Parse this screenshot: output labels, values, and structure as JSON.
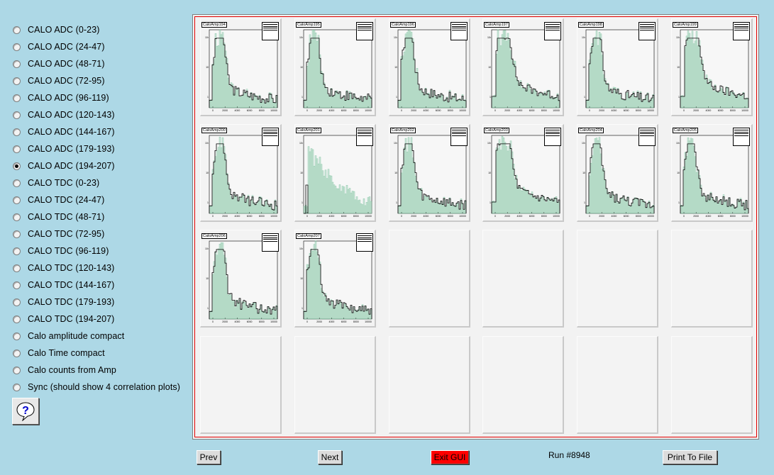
{
  "sidebar": {
    "options": [
      {
        "label": "CALO ADC (0-23)",
        "checked": false
      },
      {
        "label": "CALO ADC (24-47)",
        "checked": false
      },
      {
        "label": "CALO ADC (48-71)",
        "checked": false
      },
      {
        "label": "CALO ADC (72-95)",
        "checked": false
      },
      {
        "label": "CALO ADC (96-119)",
        "checked": false
      },
      {
        "label": "CALO ADC (120-143)",
        "checked": false
      },
      {
        "label": "CALO ADC (144-167)",
        "checked": false
      },
      {
        "label": "CALO ADC (179-193)",
        "checked": false
      },
      {
        "label": "CALO ADC (194-207)",
        "checked": true
      },
      {
        "label": "CALO TDC (0-23)",
        "checked": false
      },
      {
        "label": "CALO TDC (24-47)",
        "checked": false
      },
      {
        "label": "CALO TDC (48-71)",
        "checked": false
      },
      {
        "label": "CALO TDC (72-95)",
        "checked": false
      },
      {
        "label": "CALO TDC (96-119)",
        "checked": false
      },
      {
        "label": "CALO TDC (120-143)",
        "checked": false
      },
      {
        "label": "CALO TDC (144-167)",
        "checked": false
      },
      {
        "label": "CALO TDC (179-193)",
        "checked": false
      },
      {
        "label": "CALO TDC (194-207)",
        "checked": false
      },
      {
        "label": "Calo amplitude compact",
        "checked": false
      },
      {
        "label": "Calo Time compact",
        "checked": false
      },
      {
        "label": "Calo counts from Amp",
        "checked": false
      },
      {
        "label": "Sync (should show 4 correlation plots)",
        "checked": false
      }
    ],
    "help_icon": "question-mark-icon"
  },
  "canvas": {
    "histograms": [
      {
        "title": "CaloAmp194",
        "shape": "peak"
      },
      {
        "title": "CaloAmp195",
        "shape": "peak"
      },
      {
        "title": "CaloAmp196",
        "shape": "peak"
      },
      {
        "title": "CaloAmp197",
        "shape": "wide"
      },
      {
        "title": "CaloAmp198",
        "shape": "peak"
      },
      {
        "title": "CaloAmp199",
        "shape": "wide"
      },
      {
        "title": "CaloAmp200",
        "shape": "peak"
      },
      {
        "title": "CaloAmp201",
        "shape": "green"
      },
      {
        "title": "CaloAmp202",
        "shape": "peak"
      },
      {
        "title": "CaloAmp203",
        "shape": "wide"
      },
      {
        "title": "CaloAmp204",
        "shape": "peak"
      },
      {
        "title": "CaloAmp205",
        "shape": "peak"
      },
      {
        "title": "CaloAmp206",
        "shape": "peak"
      },
      {
        "title": "CaloAmp207",
        "shape": "peak"
      }
    ],
    "x_ticks": [
      "0",
      "2000",
      "4000",
      "6000",
      "8000",
      "10000"
    ],
    "y_ticks": [
      "10²",
      "10",
      "1"
    ],
    "empty_pads": 10
  },
  "footer": {
    "prev_label": "Prev",
    "next_label": "Next",
    "exit_label": "Exit GUI",
    "run_label": "Run #8948",
    "print_label": "Print To File"
  },
  "colors": {
    "background": "#add8e6",
    "frame_border": "#e00000",
    "exit_button": "#ff0000",
    "hist_fill": "#7fc4a0",
    "hist_line": "#000000"
  }
}
